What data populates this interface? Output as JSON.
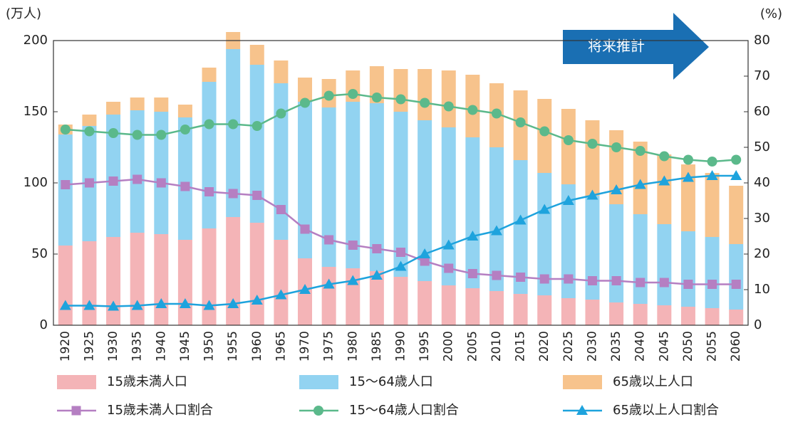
{
  "chart_data": {
    "type": "bar",
    "y_label": "(万人)",
    "y2_label": "(%)",
    "annotation": "将来推計",
    "categories": [
      "1920",
      "1925",
      "1930",
      "1935",
      "1940",
      "1945",
      "1950",
      "1955",
      "1960",
      "1965",
      "1970",
      "1975",
      "1980",
      "1985",
      "1990",
      "1995",
      "2000",
      "2005",
      "2010",
      "2015",
      "2020",
      "2025",
      "2030",
      "2035",
      "2040",
      "2045",
      "2050",
      "2055",
      "2060"
    ],
    "ylim": [
      0,
      200
    ],
    "yticks": [
      0,
      50,
      100,
      150,
      200
    ],
    "y2lim": [
      0,
      80
    ],
    "y2ticks": [
      0,
      10,
      20,
      30,
      40,
      50,
      60,
      70,
      80
    ],
    "grid": false,
    "series": [
      {
        "name": "15歳未満人口",
        "type": "bar",
        "color": "#f4b4b7",
        "values": [
          56,
          59,
          62,
          65,
          64,
          60,
          68,
          76,
          72,
          60,
          47,
          41,
          40,
          38,
          34,
          31,
          28,
          26,
          24,
          22,
          21,
          19,
          18,
          16,
          15,
          14,
          13,
          12,
          11
        ]
      },
      {
        "name": "15～64歳人口",
        "type": "bar",
        "color": "#92d3f1",
        "values": [
          78,
          81,
          86,
          86,
          86,
          86,
          103,
          118,
          111,
          110,
          110,
          112,
          117,
          118,
          116,
          113,
          111,
          106,
          101,
          94,
          86,
          80,
          73,
          69,
          63,
          57,
          53,
          50,
          46
        ]
      },
      {
        "name": "65歳以上人口",
        "type": "bar",
        "color": "#f7c38c",
        "values": [
          7,
          8,
          9,
          9,
          10,
          9,
          10,
          12,
          14,
          16,
          17,
          20,
          22,
          26,
          30,
          36,
          40,
          44,
          45,
          49,
          52,
          53,
          53,
          52,
          51,
          49,
          47,
          45,
          41
        ]
      },
      {
        "name": "15歳未満人口割合",
        "type": "line",
        "axis": "y2",
        "color": "#b57fc2",
        "marker": "square",
        "values": [
          39.5,
          40,
          40.5,
          41,
          40,
          39,
          37.5,
          37,
          36.5,
          32.5,
          27,
          24,
          22.5,
          21.5,
          20.5,
          18,
          16,
          14.5,
          14,
          13.5,
          13,
          13,
          12.5,
          12.5,
          12,
          12,
          11.5,
          11.5,
          11.5
        ]
      },
      {
        "name": "15～64歳人口割合",
        "type": "line",
        "axis": "y2",
        "color": "#5bb98b",
        "marker": "circle",
        "values": [
          55,
          54.5,
          54,
          53.5,
          53.5,
          55,
          56.5,
          56.5,
          56,
          59.5,
          62.5,
          64.5,
          65,
          64,
          63.5,
          62.5,
          61.5,
          60.5,
          59.5,
          57,
          54.5,
          52,
          51,
          50,
          49,
          47.5,
          46.5,
          46,
          46.5
        ]
      },
      {
        "name": "65歳以上人口割合",
        "type": "line",
        "axis": "y2",
        "color": "#1ea3dd",
        "marker": "triangle",
        "values": [
          5.5,
          5.5,
          5.3,
          5.5,
          6,
          6,
          5.5,
          6,
          7,
          8.5,
          10,
          11.5,
          12.5,
          14,
          16.5,
          20,
          22.5,
          25,
          26.5,
          29.5,
          32.5,
          35,
          36.5,
          38,
          39.5,
          40.5,
          41.5,
          42,
          42
        ]
      }
    ]
  }
}
